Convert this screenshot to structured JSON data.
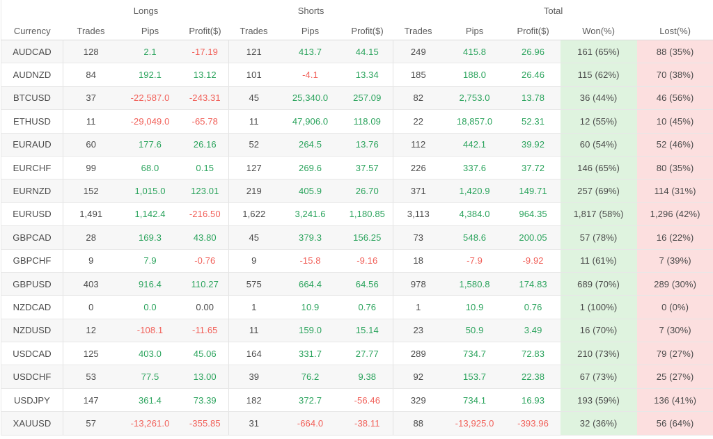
{
  "table": {
    "groups": [
      {
        "label": "",
        "span": 1
      },
      {
        "label": "Longs",
        "span": 3
      },
      {
        "label": "Shorts",
        "span": 3
      },
      {
        "label": "Total",
        "span": 5
      }
    ],
    "columns": [
      {
        "key": "currency",
        "label": "Currency"
      },
      {
        "key": "longs-trades",
        "label": "Trades"
      },
      {
        "key": "longs-pips",
        "label": "Pips"
      },
      {
        "key": "longs-profit",
        "label": "Profit($)"
      },
      {
        "key": "shorts-trades",
        "label": "Trades"
      },
      {
        "key": "shorts-pips",
        "label": "Pips"
      },
      {
        "key": "shorts-profit",
        "label": "Profit($)"
      },
      {
        "key": "total-trades",
        "label": "Trades"
      },
      {
        "key": "total-pips",
        "label": "Pips"
      },
      {
        "key": "total-profit",
        "label": "Profit($)"
      },
      {
        "key": "won",
        "label": "Won(%)"
      },
      {
        "key": "lost",
        "label": "Lost(%)"
      }
    ],
    "rows": [
      {
        "currency": "AUDCAD",
        "values": [
          {
            "v": "128",
            "c": "plain"
          },
          {
            "v": "2.1",
            "c": "green"
          },
          {
            "v": "-17.19",
            "c": "red"
          },
          {
            "v": "121",
            "c": "plain"
          },
          {
            "v": "413.7",
            "c": "green"
          },
          {
            "v": "44.15",
            "c": "green"
          },
          {
            "v": "249",
            "c": "plain"
          },
          {
            "v": "415.8",
            "c": "green"
          },
          {
            "v": "26.96",
            "c": "green"
          },
          {
            "v": "161 (65%)",
            "c": "plain"
          },
          {
            "v": "88 (35%)",
            "c": "plain"
          }
        ]
      },
      {
        "currency": "AUDNZD",
        "values": [
          {
            "v": "84",
            "c": "plain"
          },
          {
            "v": "192.1",
            "c": "green"
          },
          {
            "v": "13.12",
            "c": "green"
          },
          {
            "v": "101",
            "c": "plain"
          },
          {
            "v": "-4.1",
            "c": "red"
          },
          {
            "v": "13.34",
            "c": "green"
          },
          {
            "v": "185",
            "c": "plain"
          },
          {
            "v": "188.0",
            "c": "green"
          },
          {
            "v": "26.46",
            "c": "green"
          },
          {
            "v": "115 (62%)",
            "c": "plain"
          },
          {
            "v": "70 (38%)",
            "c": "plain"
          }
        ]
      },
      {
        "currency": "BTCUSD",
        "values": [
          {
            "v": "37",
            "c": "plain"
          },
          {
            "v": "-22,587.0",
            "c": "red"
          },
          {
            "v": "-243.31",
            "c": "red"
          },
          {
            "v": "45",
            "c": "plain"
          },
          {
            "v": "25,340.0",
            "c": "green"
          },
          {
            "v": "257.09",
            "c": "green"
          },
          {
            "v": "82",
            "c": "plain"
          },
          {
            "v": "2,753.0",
            "c": "green"
          },
          {
            "v": "13.78",
            "c": "green"
          },
          {
            "v": "36 (44%)",
            "c": "plain"
          },
          {
            "v": "46 (56%)",
            "c": "plain"
          }
        ]
      },
      {
        "currency": "ETHUSD",
        "values": [
          {
            "v": "11",
            "c": "plain"
          },
          {
            "v": "-29,049.0",
            "c": "red"
          },
          {
            "v": "-65.78",
            "c": "red"
          },
          {
            "v": "11",
            "c": "plain"
          },
          {
            "v": "47,906.0",
            "c": "green"
          },
          {
            "v": "118.09",
            "c": "green"
          },
          {
            "v": "22",
            "c": "plain"
          },
          {
            "v": "18,857.0",
            "c": "green"
          },
          {
            "v": "52.31",
            "c": "green"
          },
          {
            "v": "12 (55%)",
            "c": "plain"
          },
          {
            "v": "10 (45%)",
            "c": "plain"
          }
        ]
      },
      {
        "currency": "EURAUD",
        "values": [
          {
            "v": "60",
            "c": "plain"
          },
          {
            "v": "177.6",
            "c": "green"
          },
          {
            "v": "26.16",
            "c": "green"
          },
          {
            "v": "52",
            "c": "plain"
          },
          {
            "v": "264.5",
            "c": "green"
          },
          {
            "v": "13.76",
            "c": "green"
          },
          {
            "v": "112",
            "c": "plain"
          },
          {
            "v": "442.1",
            "c": "green"
          },
          {
            "v": "39.92",
            "c": "green"
          },
          {
            "v": "60 (54%)",
            "c": "plain"
          },
          {
            "v": "52 (46%)",
            "c": "plain"
          }
        ]
      },
      {
        "currency": "EURCHF",
        "values": [
          {
            "v": "99",
            "c": "plain"
          },
          {
            "v": "68.0",
            "c": "green"
          },
          {
            "v": "0.15",
            "c": "green"
          },
          {
            "v": "127",
            "c": "plain"
          },
          {
            "v": "269.6",
            "c": "green"
          },
          {
            "v": "37.57",
            "c": "green"
          },
          {
            "v": "226",
            "c": "plain"
          },
          {
            "v": "337.6",
            "c": "green"
          },
          {
            "v": "37.72",
            "c": "green"
          },
          {
            "v": "146 (65%)",
            "c": "plain"
          },
          {
            "v": "80 (35%)",
            "c": "plain"
          }
        ]
      },
      {
        "currency": "EURNZD",
        "values": [
          {
            "v": "152",
            "c": "plain"
          },
          {
            "v": "1,015.0",
            "c": "green"
          },
          {
            "v": "123.01",
            "c": "green"
          },
          {
            "v": "219",
            "c": "plain"
          },
          {
            "v": "405.9",
            "c": "green"
          },
          {
            "v": "26.70",
            "c": "green"
          },
          {
            "v": "371",
            "c": "plain"
          },
          {
            "v": "1,420.9",
            "c": "green"
          },
          {
            "v": "149.71",
            "c": "green"
          },
          {
            "v": "257 (69%)",
            "c": "plain"
          },
          {
            "v": "114 (31%)",
            "c": "plain"
          }
        ]
      },
      {
        "currency": "EURUSD",
        "values": [
          {
            "v": "1,491",
            "c": "plain"
          },
          {
            "v": "1,142.4",
            "c": "green"
          },
          {
            "v": "-216.50",
            "c": "red"
          },
          {
            "v": "1,622",
            "c": "plain"
          },
          {
            "v": "3,241.6",
            "c": "green"
          },
          {
            "v": "1,180.85",
            "c": "green"
          },
          {
            "v": "3,113",
            "c": "plain"
          },
          {
            "v": "4,384.0",
            "c": "green"
          },
          {
            "v": "964.35",
            "c": "green"
          },
          {
            "v": "1,817 (58%)",
            "c": "plain"
          },
          {
            "v": "1,296 (42%)",
            "c": "plain"
          }
        ]
      },
      {
        "currency": "GBPCAD",
        "values": [
          {
            "v": "28",
            "c": "plain"
          },
          {
            "v": "169.3",
            "c": "green"
          },
          {
            "v": "43.80",
            "c": "green"
          },
          {
            "v": "45",
            "c": "plain"
          },
          {
            "v": "379.3",
            "c": "green"
          },
          {
            "v": "156.25",
            "c": "green"
          },
          {
            "v": "73",
            "c": "plain"
          },
          {
            "v": "548.6",
            "c": "green"
          },
          {
            "v": "200.05",
            "c": "green"
          },
          {
            "v": "57 (78%)",
            "c": "plain"
          },
          {
            "v": "16 (22%)",
            "c": "plain"
          }
        ]
      },
      {
        "currency": "GBPCHF",
        "values": [
          {
            "v": "9",
            "c": "plain"
          },
          {
            "v": "7.9",
            "c": "green"
          },
          {
            "v": "-0.76",
            "c": "red"
          },
          {
            "v": "9",
            "c": "plain"
          },
          {
            "v": "-15.8",
            "c": "red"
          },
          {
            "v": "-9.16",
            "c": "red"
          },
          {
            "v": "18",
            "c": "plain"
          },
          {
            "v": "-7.9",
            "c": "red"
          },
          {
            "v": "-9.92",
            "c": "red"
          },
          {
            "v": "11 (61%)",
            "c": "plain"
          },
          {
            "v": "7 (39%)",
            "c": "plain"
          }
        ]
      },
      {
        "currency": "GBPUSD",
        "values": [
          {
            "v": "403",
            "c": "plain"
          },
          {
            "v": "916.4",
            "c": "green"
          },
          {
            "v": "110.27",
            "c": "green"
          },
          {
            "v": "575",
            "c": "plain"
          },
          {
            "v": "664.4",
            "c": "green"
          },
          {
            "v": "64.56",
            "c": "green"
          },
          {
            "v": "978",
            "c": "plain"
          },
          {
            "v": "1,580.8",
            "c": "green"
          },
          {
            "v": "174.83",
            "c": "green"
          },
          {
            "v": "689 (70%)",
            "c": "plain"
          },
          {
            "v": "289 (30%)",
            "c": "plain"
          }
        ]
      },
      {
        "currency": "NZDCAD",
        "values": [
          {
            "v": "0",
            "c": "plain"
          },
          {
            "v": "0.0",
            "c": "green"
          },
          {
            "v": "0.00",
            "c": "plain"
          },
          {
            "v": "1",
            "c": "plain"
          },
          {
            "v": "10.9",
            "c": "green"
          },
          {
            "v": "0.76",
            "c": "green"
          },
          {
            "v": "1",
            "c": "plain"
          },
          {
            "v": "10.9",
            "c": "green"
          },
          {
            "v": "0.76",
            "c": "green"
          },
          {
            "v": "1 (100%)",
            "c": "plain"
          },
          {
            "v": "0 (0%)",
            "c": "plain"
          }
        ]
      },
      {
        "currency": "NZDUSD",
        "values": [
          {
            "v": "12",
            "c": "plain"
          },
          {
            "v": "-108.1",
            "c": "red"
          },
          {
            "v": "-11.65",
            "c": "red"
          },
          {
            "v": "11",
            "c": "plain"
          },
          {
            "v": "159.0",
            "c": "green"
          },
          {
            "v": "15.14",
            "c": "green"
          },
          {
            "v": "23",
            "c": "plain"
          },
          {
            "v": "50.9",
            "c": "green"
          },
          {
            "v": "3.49",
            "c": "green"
          },
          {
            "v": "16 (70%)",
            "c": "plain"
          },
          {
            "v": "7 (30%)",
            "c": "plain"
          }
        ]
      },
      {
        "currency": "USDCAD",
        "values": [
          {
            "v": "125",
            "c": "plain"
          },
          {
            "v": "403.0",
            "c": "green"
          },
          {
            "v": "45.06",
            "c": "green"
          },
          {
            "v": "164",
            "c": "plain"
          },
          {
            "v": "331.7",
            "c": "green"
          },
          {
            "v": "27.77",
            "c": "green"
          },
          {
            "v": "289",
            "c": "plain"
          },
          {
            "v": "734.7",
            "c": "green"
          },
          {
            "v": "72.83",
            "c": "green"
          },
          {
            "v": "210 (73%)",
            "c": "plain"
          },
          {
            "v": "79 (27%)",
            "c": "plain"
          }
        ]
      },
      {
        "currency": "USDCHF",
        "values": [
          {
            "v": "53",
            "c": "plain"
          },
          {
            "v": "77.5",
            "c": "green"
          },
          {
            "v": "13.00",
            "c": "green"
          },
          {
            "v": "39",
            "c": "plain"
          },
          {
            "v": "76.2",
            "c": "green"
          },
          {
            "v": "9.38",
            "c": "green"
          },
          {
            "v": "92",
            "c": "plain"
          },
          {
            "v": "153.7",
            "c": "green"
          },
          {
            "v": "22.38",
            "c": "green"
          },
          {
            "v": "67 (73%)",
            "c": "plain"
          },
          {
            "v": "25 (27%)",
            "c": "plain"
          }
        ]
      },
      {
        "currency": "USDJPY",
        "values": [
          {
            "v": "147",
            "c": "plain"
          },
          {
            "v": "361.4",
            "c": "green"
          },
          {
            "v": "73.39",
            "c": "green"
          },
          {
            "v": "182",
            "c": "plain"
          },
          {
            "v": "372.7",
            "c": "green"
          },
          {
            "v": "-56.46",
            "c": "red"
          },
          {
            "v": "329",
            "c": "plain"
          },
          {
            "v": "734.1",
            "c": "green"
          },
          {
            "v": "16.93",
            "c": "green"
          },
          {
            "v": "193 (59%)",
            "c": "plain"
          },
          {
            "v": "136 (41%)",
            "c": "plain"
          }
        ]
      },
      {
        "currency": "XAUUSD",
        "values": [
          {
            "v": "57",
            "c": "plain"
          },
          {
            "v": "-13,261.0",
            "c": "red"
          },
          {
            "v": "-355.85",
            "c": "red"
          },
          {
            "v": "31",
            "c": "plain"
          },
          {
            "v": "-664.0",
            "c": "red"
          },
          {
            "v": "-38.11",
            "c": "red"
          },
          {
            "v": "88",
            "c": "plain"
          },
          {
            "v": "-13,925.0",
            "c": "red"
          },
          {
            "v": "-393.96",
            "c": "red"
          },
          {
            "v": "32 (36%)",
            "c": "plain"
          },
          {
            "v": "56 (64%)",
            "c": "plain"
          }
        ]
      }
    ]
  },
  "colors": {
    "positive_text": "#2aa35c",
    "negative_text": "#f15f58",
    "neutral_text": "#4a4a4a",
    "header_text": "#5c5c5c",
    "won_bg": "#dff3df",
    "lost_bg": "#fcdfdf",
    "stripe_bg": "#f7f7f7",
    "border": "#e7e7e7"
  }
}
